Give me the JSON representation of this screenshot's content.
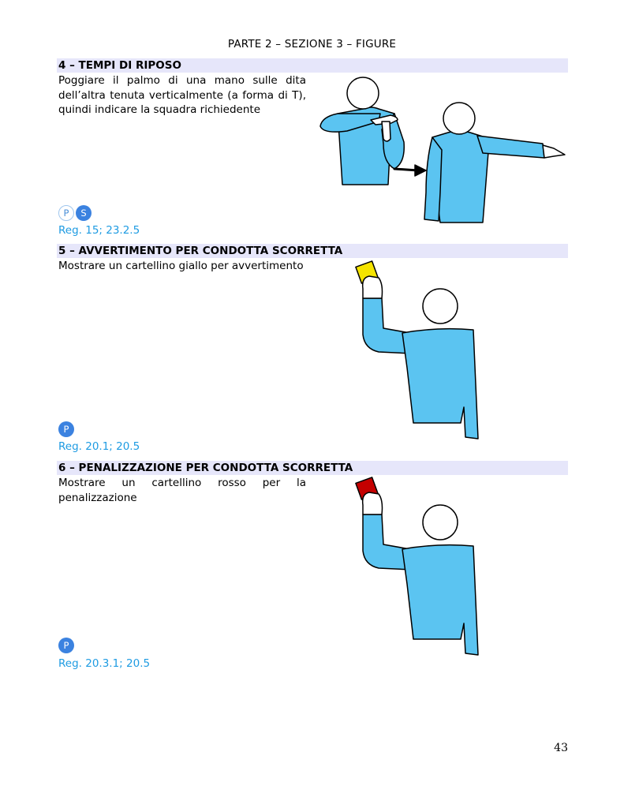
{
  "header": {
    "title": "PARTE 2 – SEZIONE 3 – FIGURE"
  },
  "sections": [
    {
      "title": "4 – TEMPI DI RIPOSO",
      "description": "Poggiare il palmo di una mano sulle dita dell’altra tenuta verticalmente (a forma di T), quindi indicare la squadra richiedente",
      "badges": [
        "P",
        "S"
      ],
      "reg": "Reg. 15; 23.2.5"
    },
    {
      "title": "5 – AVVERTIMENTO PER CONDOTTA SCORRETTA",
      "description": "Mostrare un cartellino giallo per avvertimento",
      "badges": [
        "P"
      ],
      "reg": "Reg. 20.1; 20.5",
      "card_color": "#f5e400"
    },
    {
      "title": "6 – PENALIZZAZIONE PER CONDOTTA SCORRETTA",
      "description": "Mostrare un cartellino rosso per la penalizzazione",
      "badges": [
        "P"
      ],
      "reg": "Reg. 20.3.1; 20.5",
      "card_color": "#c40000"
    }
  ],
  "colors": {
    "shirt": "#5bc4f1",
    "section_bar": "#e6e6fa",
    "reg_text": "#1e9be2",
    "badge": "#3b82e0"
  },
  "page_number": "43"
}
